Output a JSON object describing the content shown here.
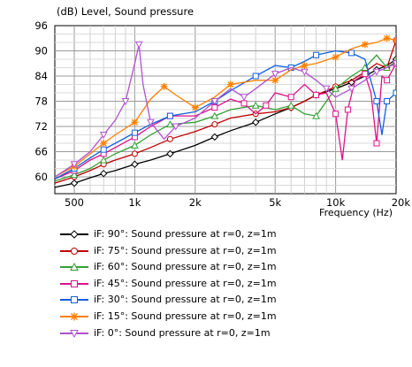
{
  "chart_data": {
    "type": "line",
    "title": "(dB)  Level, Sound pressure",
    "xlabel": "Frequency  (Hz)",
    "ylabel": "",
    "x_scale": "log",
    "xlim": [
      400,
      20000
    ],
    "ylim": [
      56,
      96
    ],
    "xticks": [
      {
        "value": 500,
        "label": "500"
      },
      {
        "value": 1000,
        "label": "1k"
      },
      {
        "value": 2000,
        "label": "2k"
      },
      {
        "value": 5000,
        "label": "5k"
      },
      {
        "value": 10000,
        "label": "10k"
      },
      {
        "value": 20000,
        "label": "20k"
      }
    ],
    "yticks": [
      {
        "value": 60,
        "label": "60"
      },
      {
        "value": 66,
        "label": "66"
      },
      {
        "value": 72,
        "label": "72"
      },
      {
        "value": 78,
        "label": "78"
      },
      {
        "value": 84,
        "label": "84"
      },
      {
        "value": 90,
        "label": "90"
      },
      {
        "value": 96,
        "label": "96"
      }
    ],
    "grid": true,
    "legend_position": "bottom",
    "series": [
      {
        "name": "iF: 90°: Sound pressure at r=0, z=1m",
        "color": "#000000",
        "marker": "diamond",
        "x": [
          400,
          500,
          600,
          700,
          800,
          1000,
          1200,
          1500,
          2000,
          2500,
          3000,
          4000,
          5000,
          6000,
          7000,
          8000,
          10000,
          12000,
          14000,
          16000,
          18000,
          20000
        ],
        "y": [
          57.5,
          58.5,
          59.8,
          60.8,
          61.5,
          63.0,
          64.0,
          65.5,
          67.5,
          69.5,
          71.0,
          73.0,
          75.0,
          76.5,
          78.0,
          79.5,
          81.0,
          82.5,
          84.0,
          85.5,
          86.5,
          88.0
        ]
      },
      {
        "name": "iF: 75°: Sound pressure at r=0, z=1m",
        "color": "#c00000",
        "marker": "circle",
        "x": [
          400,
          500,
          600,
          700,
          800,
          1000,
          1200,
          1500,
          2000,
          2500,
          3000,
          4000,
          5000,
          6000,
          7000,
          8000,
          9000,
          10000,
          12000,
          14000,
          16000,
          18000,
          20000
        ],
        "y": [
          58.5,
          60.0,
          61.5,
          63.0,
          64.0,
          65.5,
          67.0,
          69.0,
          70.8,
          72.5,
          74.0,
          75.0,
          75.5,
          76.5,
          78.0,
          79.5,
          80.5,
          81.5,
          83.0,
          85.0,
          87.0,
          86.0,
          92.5
        ]
      },
      {
        "name": "iF: 60°: Sound pressure at r=0, z=1m",
        "color": "#33a033",
        "marker": "triangle",
        "x": [
          400,
          500,
          600,
          700,
          800,
          1000,
          1200,
          1500,
          2000,
          2500,
          3000,
          4000,
          5000,
          6000,
          7000,
          8000,
          9000,
          10000,
          12000,
          14000,
          16000,
          18000,
          20000
        ],
        "y": [
          59.0,
          60.5,
          62.0,
          64.0,
          65.5,
          67.5,
          70.0,
          72.5,
          73.0,
          74.5,
          76.0,
          77.0,
          76.0,
          77.0,
          75.0,
          74.5,
          78.0,
          81.0,
          84.0,
          86.0,
          89.0,
          86.0,
          87.5
        ]
      },
      {
        "name": "iF: 45°: Sound pressure at r=0, z=1m",
        "color": "#e0108a",
        "marker": "square",
        "x": [
          400,
          500,
          600,
          700,
          800,
          1000,
          1200,
          1500,
          2000,
          2500,
          3000,
          3500,
          4000,
          4500,
          5000,
          6000,
          7000,
          8000,
          9000,
          10000,
          10800,
          11500,
          12500,
          14000,
          15000,
          16000,
          17000,
          18000,
          20000
        ],
        "y": [
          59.5,
          61.5,
          64.0,
          65.5,
          67.0,
          69.5,
          72.0,
          74.5,
          74.5,
          76.5,
          78.5,
          77.5,
          75.0,
          77.0,
          80.0,
          79.0,
          82.0,
          79.5,
          80.0,
          75.0,
          64.0,
          76.0,
          83.0,
          84.5,
          80.0,
          68.0,
          84.0,
          83.0,
          87.0
        ]
      },
      {
        "name": "iF: 30°: Sound pressure at r=0, z=1m",
        "color": "#1060e0",
        "marker": "square",
        "x": [
          400,
          500,
          600,
          700,
          800,
          1000,
          1200,
          1500,
          2000,
          2500,
          3000,
          4000,
          5000,
          6000,
          7000,
          8000,
          10000,
          12000,
          14000,
          16000,
          17000,
          18000,
          20000
        ],
        "y": [
          59.5,
          62.0,
          64.5,
          66.5,
          68.0,
          70.5,
          72.5,
          74.5,
          75.5,
          78.0,
          80.5,
          84.0,
          86.5,
          86.0,
          87.5,
          89.0,
          90.0,
          89.5,
          88.0,
          78.0,
          70.0,
          78.0,
          80.0
        ]
      },
      {
        "name": "iF: 15°: Sound pressure at r=0, z=1m",
        "color": "#ff8000",
        "marker": "star",
        "x": [
          400,
          500,
          600,
          700,
          800,
          1000,
          1200,
          1400,
          1600,
          2000,
          2500,
          3000,
          4000,
          5000,
          6000,
          7000,
          8000,
          10000,
          12000,
          14000,
          16000,
          18000,
          20000
        ],
        "y": [
          60.0,
          62.5,
          65.5,
          68.0,
          70.0,
          73.0,
          78.5,
          81.5,
          79.5,
          76.5,
          79.0,
          82.0,
          83.0,
          83.0,
          85.5,
          86.5,
          87.0,
          88.5,
          90.5,
          91.5,
          92.0,
          93.0,
          92.5
        ]
      },
      {
        "name": "iF: 0°: Sound pressure at r=0, z=1m",
        "color": "#b050d0",
        "marker": "triangle-down",
        "x": [
          400,
          500,
          600,
          700,
          800,
          900,
          1000,
          1050,
          1100,
          1200,
          1400,
          1600,
          2000,
          2500,
          3000,
          3500,
          4000,
          5000,
          6000,
          7000,
          8000,
          9000,
          10000,
          12000,
          14000,
          16000,
          18000,
          20000
        ],
        "y": [
          60.0,
          63.0,
          66.0,
          70.0,
          73.5,
          78.0,
          87.0,
          91.5,
          82.0,
          73.0,
          69.0,
          72.0,
          74.0,
          78.0,
          81.0,
          79.0,
          81.0,
          84.5,
          86.0,
          85.0,
          83.0,
          81.0,
          79.0,
          81.0,
          83.0,
          85.0,
          86.0,
          87.0
        ]
      }
    ]
  }
}
